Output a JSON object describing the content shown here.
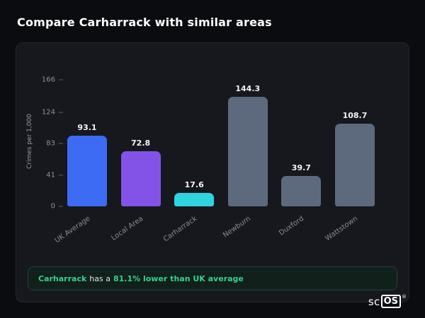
{
  "page": {
    "title": "Compare Carharrack with similar areas"
  },
  "chart_data": {
    "type": "bar",
    "title": "",
    "ylabel": "Crimes per 1,000",
    "xlabel": "",
    "categories": [
      "UK Average",
      "Local Area",
      "Carharrack",
      "Newburn",
      "Duxford",
      "Wattstown"
    ],
    "values": [
      93.1,
      72.8,
      17.6,
      144.3,
      39.7,
      108.7
    ],
    "bar_colors": [
      "#3d6bf3",
      "#8353e8",
      "#2fd4de",
      "#5d6a7d",
      "#5d6a7d",
      "#5d6a7d"
    ],
    "yticks": [
      0,
      41,
      83,
      124,
      166
    ],
    "ylim": [
      0,
      172
    ],
    "grid": false,
    "legend": false
  },
  "insight": {
    "area_name": "Carharrack",
    "connector_text": "has a",
    "highlight_text": "81.1% lower than UK average",
    "accent_color": "#35d08e"
  },
  "logo": {
    "prefix": "sc",
    "boxed": "OS",
    "registered": "®"
  },
  "colors": {
    "background": "#0b0c0f",
    "card_background": "#16181d",
    "bar_value_text": "#f2f4f6",
    "axis_text": "#8d939c"
  }
}
